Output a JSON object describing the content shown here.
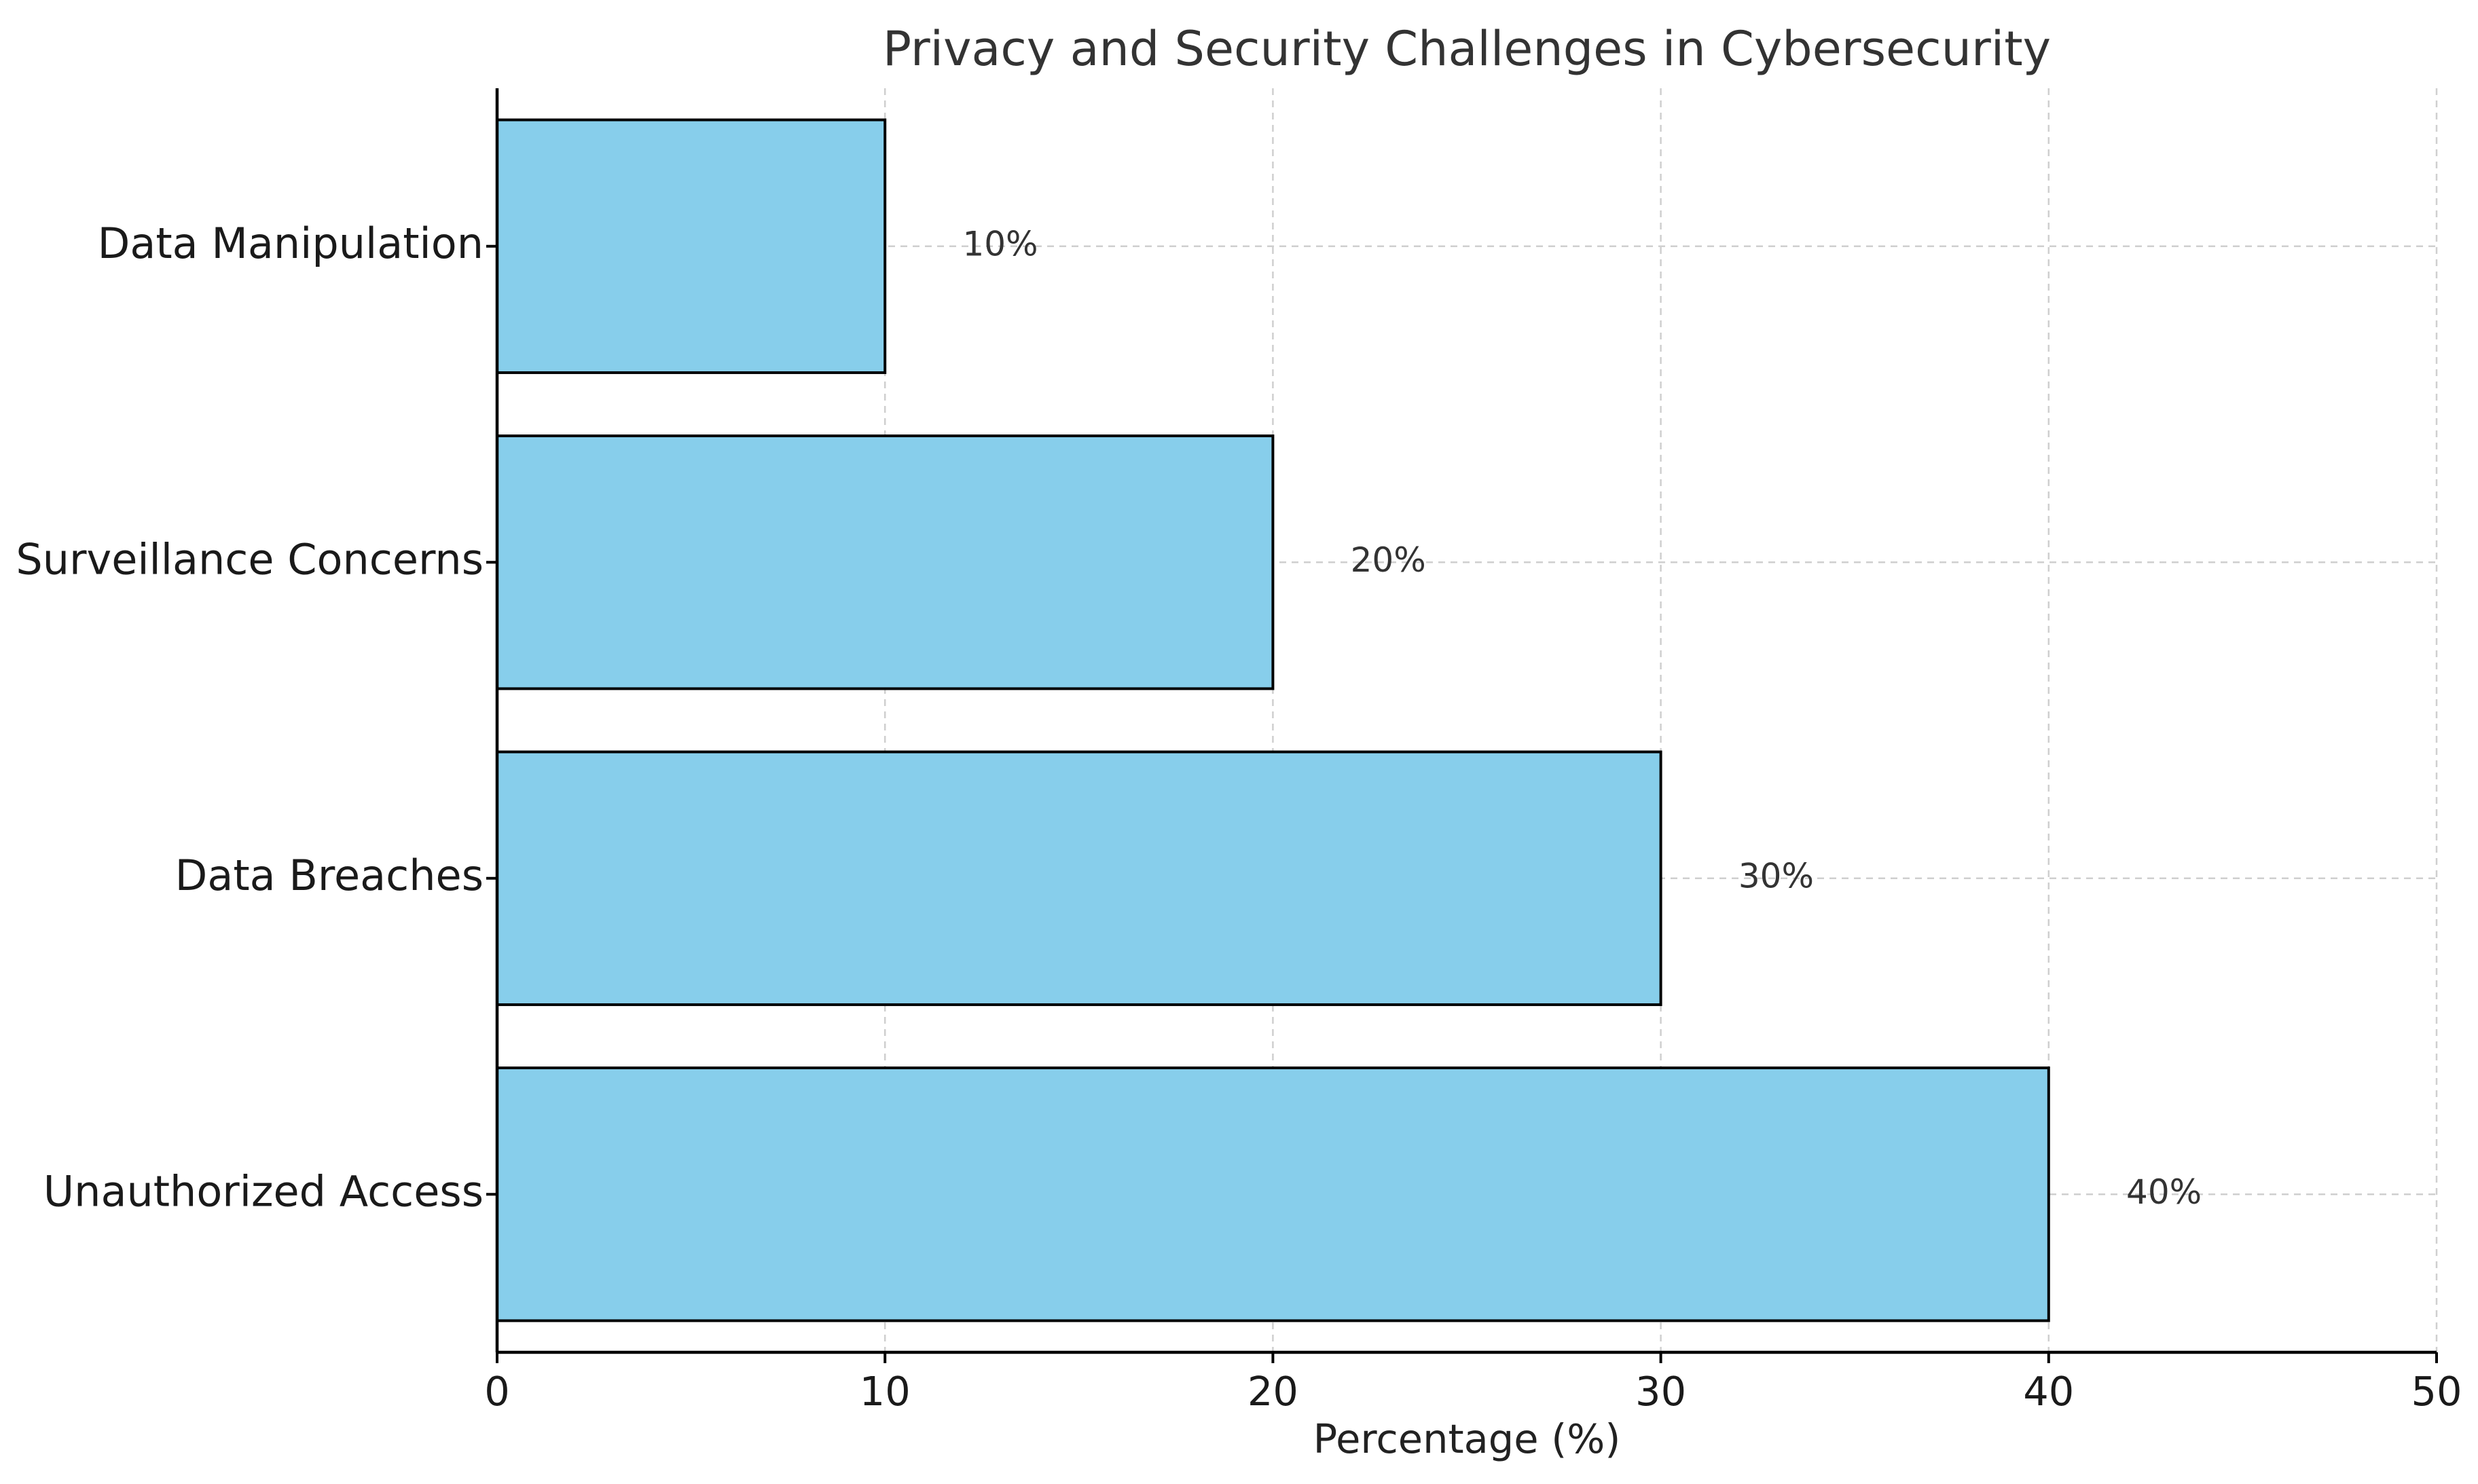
{
  "chart_data": {
    "type": "bar",
    "orientation": "horizontal",
    "title": "Privacy and Security Challenges in Cybersecurity",
    "xlabel": "Percentage (%)",
    "ylabel": "",
    "categories": [
      "Unauthorized Access",
      "Data Breaches",
      "Surveillance Concerns",
      "Data Manipulation"
    ],
    "values": [
      40,
      30,
      20,
      10
    ],
    "data_labels": [
      "40%",
      "30%",
      "20%",
      "10%"
    ],
    "xlim": [
      0,
      50
    ],
    "xticks": [
      0,
      10,
      20,
      30,
      40,
      50
    ],
    "grid": true,
    "legend": "none",
    "colors": {
      "bar_fill": "#87CEEB",
      "bar_edge": "#000000"
    }
  }
}
